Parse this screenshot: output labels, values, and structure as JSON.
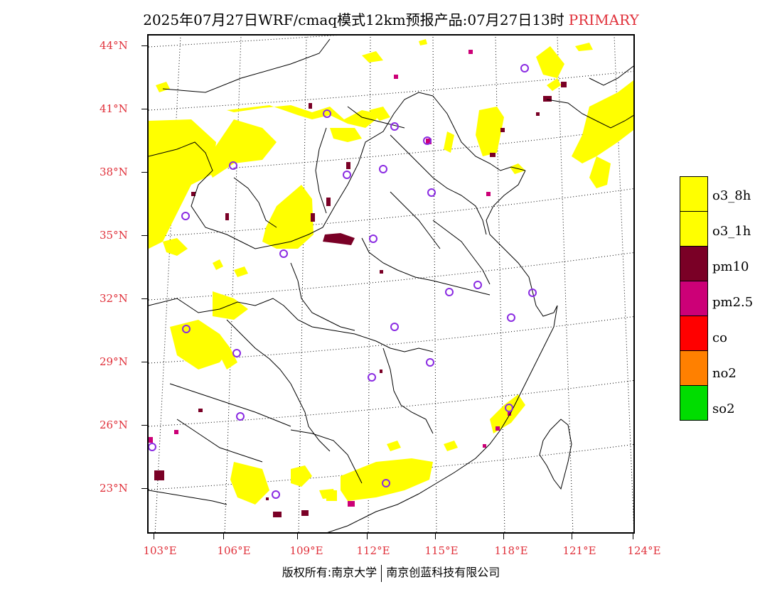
{
  "title": {
    "main": "2025年07月27日WRF/cmaq模式12km预报产品:07月27日13时",
    "tag": "PRIMARY"
  },
  "axes": {
    "lat_labels": [
      "44°N",
      "41°N",
      "38°N",
      "35°N",
      "32°N",
      "29°N",
      "26°N",
      "23°N"
    ],
    "lon_labels": [
      "103°E",
      "106°E",
      "109°E",
      "112°E",
      "115°E",
      "118°E",
      "121°E",
      "124°E"
    ]
  },
  "legend": [
    {
      "label": "o3_8h",
      "color": "#ffff00"
    },
    {
      "label": "o3_1h",
      "color": "#ffff00"
    },
    {
      "label": "pm10",
      "color": "#7a0026"
    },
    {
      "label": "pm2.5",
      "color": "#cc0077"
    },
    {
      "label": "co",
      "color": "#ff0000"
    },
    {
      "label": "no2",
      "color": "#ff8000"
    },
    {
      "label": "so2",
      "color": "#00dd00"
    }
  ],
  "footer": {
    "left": "版权所有:南京大学",
    "right": "南京创蓝科技有限公司"
  },
  "colors": {
    "o3": "#ffff00",
    "pm10": "#7a0026",
    "pm25": "#cc0077",
    "station": "#8a2be2",
    "label": "#e0303a"
  }
}
